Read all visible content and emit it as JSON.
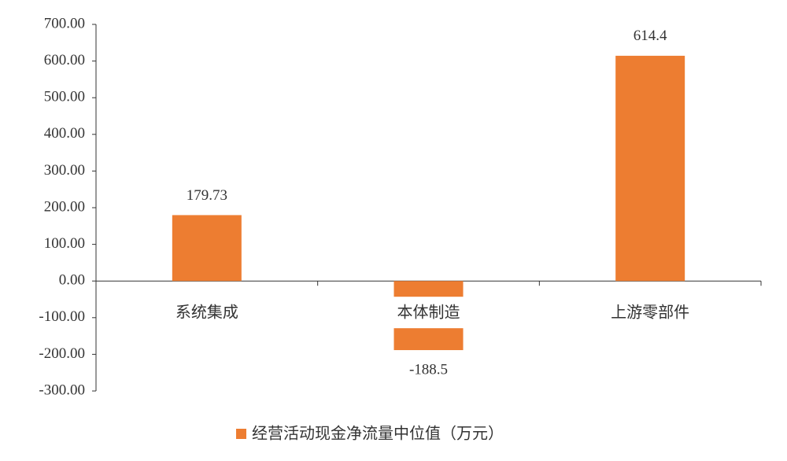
{
  "chart_data": {
    "type": "bar",
    "categories": [
      "系统集成",
      "本体制造",
      "上游零部件"
    ],
    "series": [
      {
        "name": "经营活动现金净流量中位值（万元）",
        "color": "#ed7d31",
        "values": [
          179.73,
          -188.5,
          614.4
        ]
      }
    ],
    "ylim": [
      -300,
      700
    ],
    "yticks": [
      {
        "value": -300,
        "label": "-300.00"
      },
      {
        "value": -200,
        "label": "-200.00"
      },
      {
        "value": -100,
        "label": "-100.00"
      },
      {
        "value": 0,
        "label": "0.00"
      },
      {
        "value": 100,
        "label": "100.00"
      },
      {
        "value": 200,
        "label": "200.00"
      },
      {
        "value": 300,
        "label": "300.00"
      },
      {
        "value": 400,
        "label": "400.00"
      },
      {
        "value": 500,
        "label": "500.00"
      },
      {
        "value": 600,
        "label": "600.00"
      },
      {
        "value": 700,
        "label": "700.00"
      }
    ],
    "grid": false,
    "legend": "bottom"
  }
}
